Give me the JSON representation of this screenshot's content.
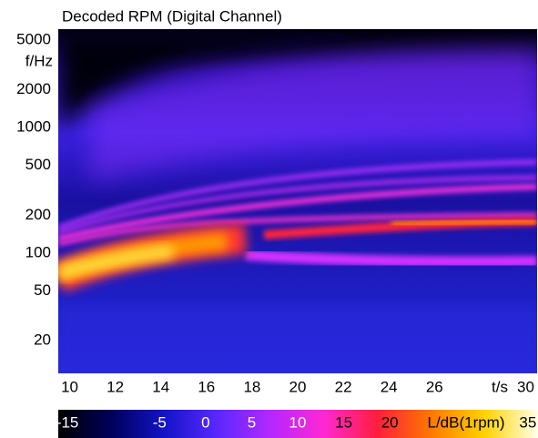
{
  "chart_data": {
    "type": "spectrogram",
    "title": "Decoded RPM (Digital Channel)",
    "xlabel": "t/s",
    "ylabel": "f/Hz",
    "xlim": [
      9.5,
      30.5
    ],
    "xticks": [
      10,
      12,
      14,
      16,
      18,
      20,
      22,
      24,
      26,
      30
    ],
    "ylim": [
      11,
      6100
    ],
    "yticks": [
      20,
      50,
      100,
      200,
      500,
      1000,
      2000,
      5000
    ],
    "log_y": true,
    "colorbar": {
      "label": "L/dB(1rpm)",
      "lim": [
        -16,
        36
      ],
      "ticks": [
        -15,
        -5,
        0,
        5,
        10,
        15,
        20,
        35
      ],
      "colormap": [
        "#000000",
        "#00005a",
        "#1414c8",
        "#5a28ff",
        "#b428ff",
        "#ff28d2",
        "#ff1e3c",
        "#ff7800",
        "#ffd200",
        "#ffffe6"
      ]
    }
  }
}
